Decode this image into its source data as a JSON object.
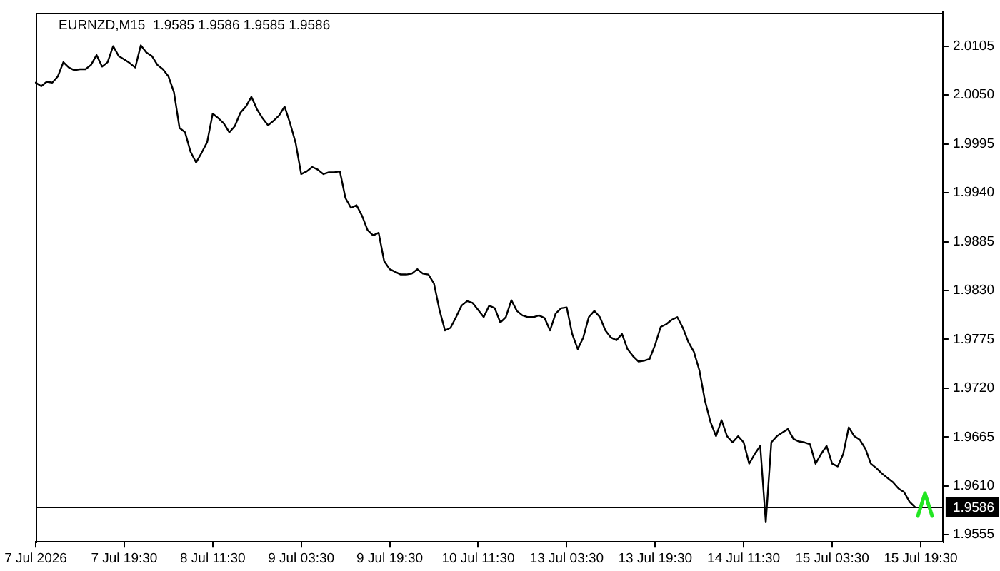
{
  "chart_data": {
    "type": "line",
    "title": "EURNZD,M15  1.9585 1.9586 1.9585 1.9586",
    "categories": [
      "7 Jul 2026",
      null,
      null,
      null,
      null,
      null,
      null,
      null,
      null,
      null,
      null,
      null,
      null,
      null,
      null,
      null,
      "7 Jul 19:30",
      null,
      null,
      null,
      null,
      null,
      null,
      null,
      null,
      null,
      null,
      null,
      null,
      null,
      null,
      null,
      "8 Jul 11:30",
      null,
      null,
      null,
      null,
      null,
      null,
      null,
      null,
      null,
      null,
      null,
      null,
      null,
      null,
      null,
      "9 Jul 03:30",
      null,
      null,
      null,
      null,
      null,
      null,
      null,
      null,
      null,
      null,
      null,
      null,
      null,
      null,
      null,
      "9 Jul 19:30",
      null,
      null,
      null,
      null,
      null,
      null,
      null,
      null,
      null,
      null,
      null,
      null,
      null,
      null,
      null,
      "10 Jul 11:30",
      null,
      null,
      null,
      null,
      null,
      null,
      null,
      null,
      null,
      null,
      null,
      null,
      null,
      null,
      null,
      "13 Jul 03:30",
      null,
      null,
      null,
      null,
      null,
      null,
      null,
      null,
      null,
      null,
      null,
      null,
      null,
      null,
      null,
      "13 Jul 19:30",
      null,
      null,
      null,
      null,
      null,
      null,
      null,
      null,
      null,
      null,
      null,
      null,
      null,
      null,
      null,
      "14 Jul 11:30",
      null,
      null,
      null,
      null,
      null,
      null,
      null,
      null,
      null,
      null,
      null,
      null,
      null,
      null,
      null,
      "15 Jul 03:30",
      null,
      null,
      null,
      null,
      null,
      null,
      null,
      null,
      null,
      null,
      null,
      null,
      null,
      null,
      null,
      "15 Jul 19:30",
      null,
      null,
      null,
      null
    ],
    "series": [
      {
        "color": "#000000",
        "values": [
          2.0064,
          2.006,
          2.0065,
          2.0064,
          2.0071,
          2.0087,
          2.0081,
          2.0078,
          2.0079,
          2.0079,
          2.0084,
          2.0095,
          2.0082,
          2.0087,
          2.0105,
          2.0094,
          2.009,
          2.0086,
          2.0081,
          2.0106,
          2.0098,
          2.0094,
          2.0084,
          2.0079,
          2.0071,
          2.0053,
          2.0013,
          2.0008,
          1.9986,
          1.9974,
          1.9985,
          1.9997,
          2.0029,
          2.0024,
          2.0018,
          2.0008,
          2.0015,
          2.003,
          2.0037,
          2.0048,
          2.0034,
          2.0024,
          2.0016,
          2.0021,
          2.0027,
          2.0037,
          2.0018,
          1.9996,
          1.9961,
          1.9964,
          1.9969,
          1.9966,
          1.9961,
          1.9963,
          1.9963,
          1.9964,
          1.9934,
          1.9923,
          1.9926,
          1.9914,
          1.9898,
          1.9892,
          1.9895,
          1.9863,
          1.9854,
          1.9851,
          1.9848,
          1.9848,
          1.9849,
          1.9854,
          1.9849,
          1.9848,
          1.9838,
          1.9808,
          1.9785,
          1.9788,
          1.98,
          1.9813,
          1.9818,
          1.9816,
          1.9808,
          1.98,
          1.9813,
          1.981,
          1.9794,
          1.98,
          1.9819,
          1.9807,
          1.9802,
          1.98,
          1.98,
          1.9802,
          1.9799,
          1.9785,
          1.9804,
          1.981,
          1.9811,
          1.9781,
          1.9764,
          1.9777,
          1.98,
          1.9807,
          1.98,
          1.9785,
          1.9777,
          1.9774,
          1.9781,
          1.9764,
          1.9756,
          1.975,
          1.9751,
          1.9753,
          1.9769,
          1.9789,
          1.9792,
          1.9797,
          1.98,
          1.9788,
          1.9772,
          1.9761,
          1.974,
          1.9706,
          1.9682,
          1.9666,
          1.9684,
          1.9666,
          1.9659,
          1.9666,
          1.9659,
          1.9635,
          1.9646,
          1.9655,
          1.9569,
          1.9659,
          1.9666,
          1.967,
          1.9674,
          1.9663,
          1.966,
          1.9659,
          1.9657,
          1.9635,
          1.9646,
          1.9655,
          1.9635,
          1.9632,
          1.9646,
          1.9676,
          1.9666,
          1.9662,
          1.9652,
          1.9635,
          1.963,
          1.9624,
          1.9619,
          1.9614,
          1.9607,
          1.9603,
          1.9592,
          1.9586,
          null,
          null,
          null,
          null,
          null
        ]
      }
    ],
    "ylim": [
      1.9547,
      2.0143
    ],
    "yticks": [
      1.9555,
      {
        "value": 1.961,
        "label": "1.9610"
      },
      1.9665,
      {
        "value": 1.972,
        "label": "1.9720"
      },
      1.9775,
      {
        "value": 1.983,
        "label": "1.9830"
      },
      1.9885,
      {
        "value": 1.994,
        "label": "1.9940"
      },
      1.9995,
      {
        "value": 2.005,
        "label": "2.0050"
      },
      2.0105
    ],
    "ref_lines": [
      {
        "axis": "y",
        "value": 1.9586,
        "label": "1.9586",
        "color": "#000000"
      }
    ]
  }
}
